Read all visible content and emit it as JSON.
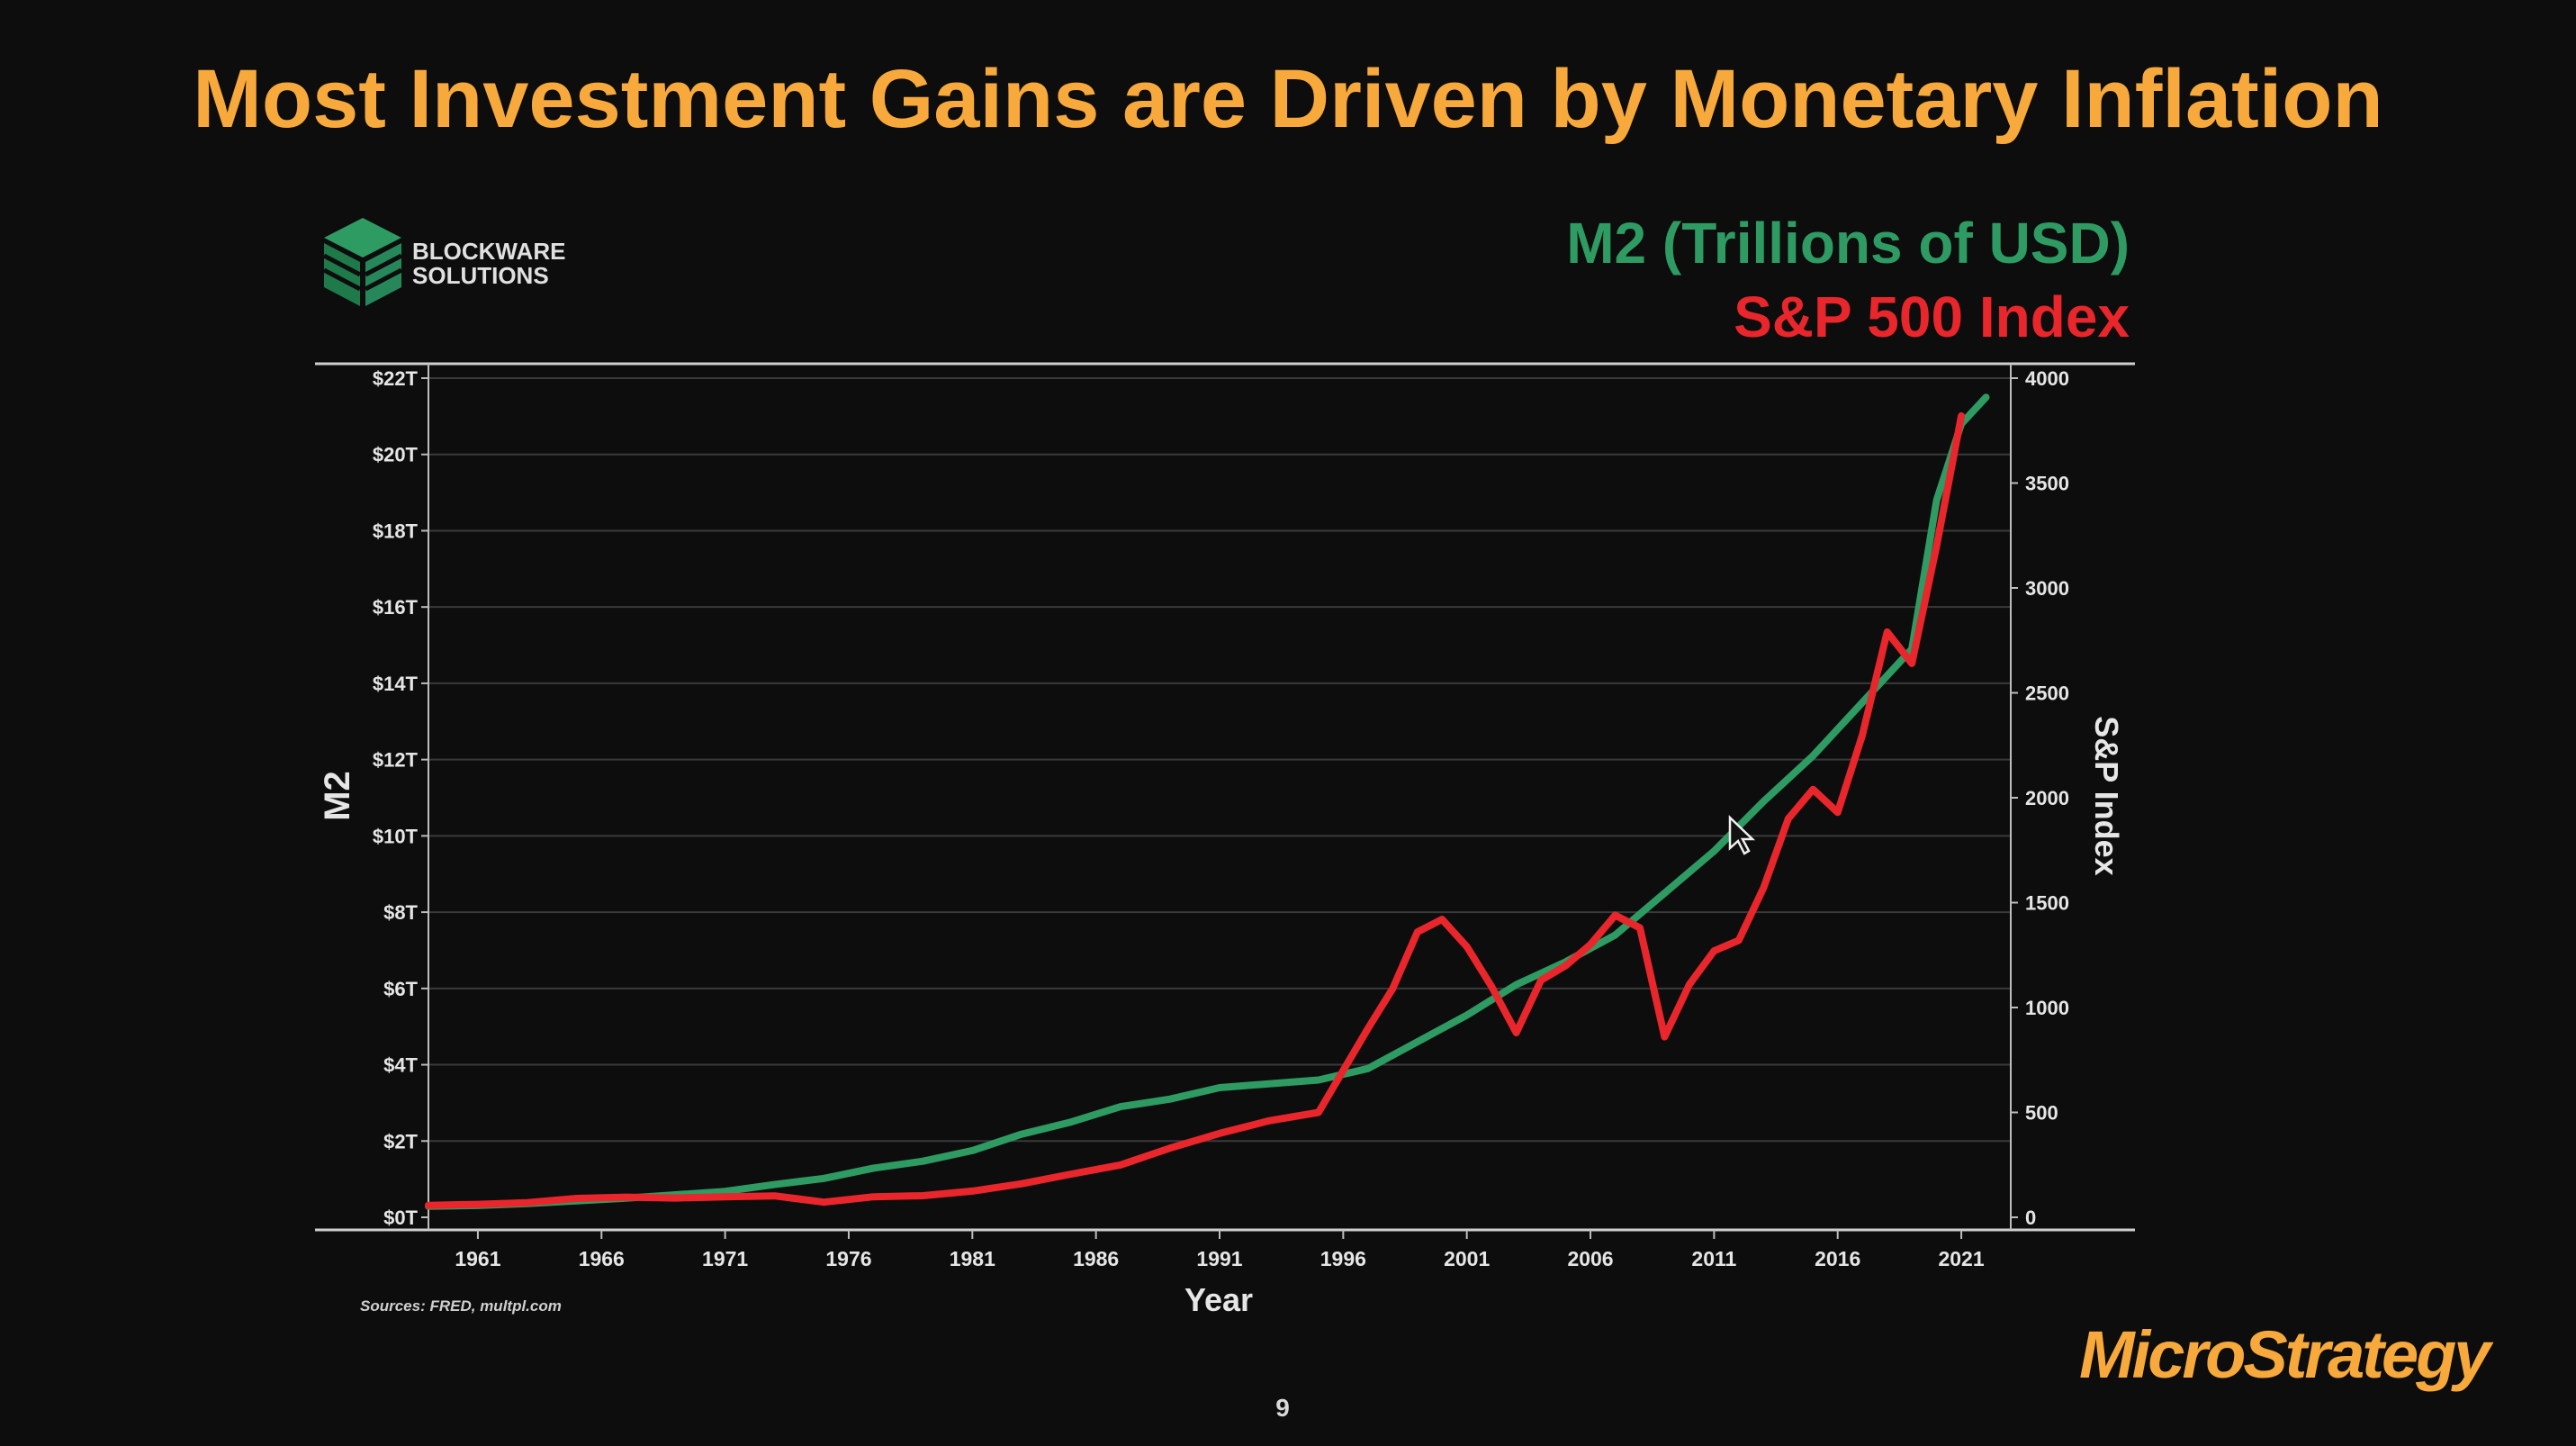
{
  "slide": {
    "title": "Most Investment Gains are Driven by Monetary Inflation",
    "page_number": "9",
    "footer_brand": "MicroStrategy",
    "source_note": "Sources: FRED, multpl.com",
    "source_logo": {
      "line1": "BLOCKWARE",
      "line2": "SOLUTIONS"
    }
  },
  "colors": {
    "title": "#f7a93c",
    "m2": "#2e9b63",
    "sp500": "#e8262b",
    "background": "#0d0d0d"
  },
  "chart_data": {
    "type": "line",
    "xlabel": "Year",
    "ylabel_left": "M2",
    "ylabel_right": "S&P Index",
    "x_ticks": [
      "1961",
      "1966",
      "1971",
      "1976",
      "1981",
      "1986",
      "1991",
      "1996",
      "2001",
      "2006",
      "2011",
      "2016",
      "2021"
    ],
    "xlim": [
      1959,
      2023
    ],
    "y_left_ticks": [
      "$0T",
      "$2T",
      "$4T",
      "$6T",
      "$8T",
      "$10T",
      "$12T",
      "$14T",
      "$16T",
      "$18T",
      "$20T",
      "$22T"
    ],
    "y_left_lim": [
      0,
      22
    ],
    "y_right_ticks": [
      "0",
      "500",
      "1000",
      "1500",
      "2000",
      "2500",
      "3000",
      "3500",
      "4000"
    ],
    "y_right_lim": [
      0,
      4000
    ],
    "grid": true,
    "legend_placement": "top-right",
    "series": [
      {
        "name": "M2 (Trillions of USD)",
        "axis": "left",
        "x": [
          1959,
          1961,
          1963,
          1965,
          1967,
          1969,
          1971,
          1973,
          1975,
          1977,
          1979,
          1981,
          1983,
          1985,
          1987,
          1989,
          1991,
          1993,
          1995,
          1997,
          1999,
          2001,
          2003,
          2005,
          2007,
          2009,
          2011,
          2013,
          2015,
          2017,
          2019,
          2020,
          2021,
          2022
        ],
        "values": [
          0.29,
          0.31,
          0.36,
          0.43,
          0.5,
          0.59,
          0.68,
          0.86,
          1.02,
          1.29,
          1.47,
          1.75,
          2.18,
          2.5,
          2.9,
          3.1,
          3.4,
          3.5,
          3.6,
          3.9,
          4.6,
          5.3,
          6.1,
          6.7,
          7.4,
          8.5,
          9.6,
          10.9,
          12.1,
          13.5,
          14.9,
          18.8,
          20.8,
          21.5
        ]
      },
      {
        "name": "S&P 500 Index",
        "axis": "right",
        "x": [
          1959,
          1961,
          1963,
          1965,
          1967,
          1969,
          1971,
          1973,
          1975,
          1977,
          1979,
          1981,
          1983,
          1985,
          1987,
          1989,
          1991,
          1993,
          1995,
          1997,
          1998,
          1999,
          2000,
          2001,
          2002,
          2003,
          2004,
          2005,
          2006,
          2007,
          2008,
          2009,
          2010,
          2011,
          2012,
          2013,
          2014,
          2015,
          2016,
          2017,
          2018,
          2019,
          2020,
          2021
        ],
        "values": [
          57,
          62,
          70,
          90,
          96,
          92,
          98,
          102,
          72,
          98,
          103,
          125,
          160,
          206,
          250,
          330,
          400,
          460,
          500,
          900,
          1090,
          1360,
          1420,
          1290,
          1100,
          880,
          1130,
          1200,
          1300,
          1440,
          1380,
          860,
          1110,
          1270,
          1320,
          1570,
          1900,
          2040,
          1930,
          2300,
          2790,
          2640,
          3200,
          3820
        ]
      }
    ]
  }
}
